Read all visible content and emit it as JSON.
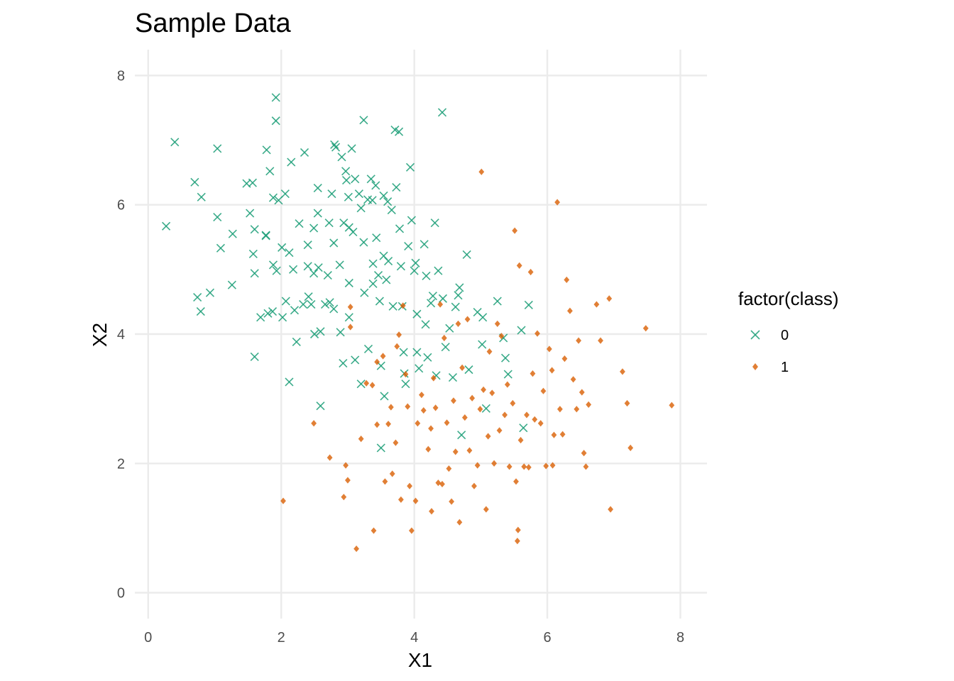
{
  "chart_data": {
    "type": "scatter",
    "title": "Sample Data",
    "xlabel": "X1",
    "ylabel": "X2",
    "xlim": [
      -0.2,
      8.4
    ],
    "ylim": [
      -0.4,
      8.4
    ],
    "x_ticks": [
      0,
      2,
      4,
      6,
      8
    ],
    "y_ticks": [
      0,
      2,
      4,
      6,
      8
    ],
    "x_tick_labels": [
      "0",
      "2",
      "4",
      "6",
      "8"
    ],
    "y_tick_labels": [
      "0",
      "2",
      "4",
      "6",
      "8"
    ],
    "grid": true,
    "legend": {
      "title": "factor(class)",
      "position": "right",
      "entries": [
        "0",
        "1"
      ]
    },
    "series": [
      {
        "name": "0",
        "marker": "x",
        "color": "#1b9e77",
        "points": [
          [
            0.4,
            6.97
          ],
          [
            0.27,
            5.67
          ],
          [
            0.7,
            6.35
          ],
          [
            0.8,
            6.12
          ],
          [
            0.74,
            4.57
          ],
          [
            0.79,
            4.35
          ],
          [
            0.93,
            4.64
          ],
          [
            1.04,
            5.81
          ],
          [
            1.04,
            6.87
          ],
          [
            1.09,
            5.33
          ],
          [
            1.27,
            5.55
          ],
          [
            1.26,
            4.76
          ],
          [
            1.48,
            6.33
          ],
          [
            1.57,
            6.34
          ],
          [
            1.53,
            5.87
          ],
          [
            1.6,
            5.62
          ],
          [
            1.58,
            5.24
          ],
          [
            1.6,
            4.94
          ],
          [
            1.6,
            3.65
          ],
          [
            1.69,
            4.26
          ],
          [
            1.77,
            5.53
          ],
          [
            1.77,
            5.52
          ],
          [
            1.78,
            6.85
          ],
          [
            1.83,
            6.52
          ],
          [
            1.8,
            4.32
          ],
          [
            1.87,
            4.35
          ],
          [
            1.88,
            5.07
          ],
          [
            1.93,
            4.98
          ],
          [
            1.92,
            7.3
          ],
          [
            1.92,
            7.66
          ],
          [
            1.88,
            6.11
          ],
          [
            1.96,
            6.07
          ],
          [
            2.01,
            5.34
          ],
          [
            2.06,
            6.17
          ],
          [
            2.02,
            4.26
          ],
          [
            2.07,
            4.51
          ],
          [
            2.12,
            3.26
          ],
          [
            2.15,
            6.66
          ],
          [
            2.12,
            5.26
          ],
          [
            2.18,
            5.0
          ],
          [
            2.2,
            4.37
          ],
          [
            2.23,
            3.88
          ],
          [
            2.27,
            5.71
          ],
          [
            2.33,
            4.46
          ],
          [
            2.35,
            6.81
          ],
          [
            2.4,
            5.38
          ],
          [
            2.4,
            5.05
          ],
          [
            2.41,
            4.58
          ],
          [
            2.45,
            4.46
          ],
          [
            2.49,
            5.64
          ],
          [
            2.49,
            4.94
          ],
          [
            2.5,
            4.0
          ],
          [
            2.55,
            6.26
          ],
          [
            2.55,
            5.87
          ],
          [
            2.56,
            5.03
          ],
          [
            2.59,
            4.04
          ],
          [
            2.59,
            2.89
          ],
          [
            2.66,
            4.46
          ],
          [
            2.7,
            4.91
          ],
          [
            2.72,
            5.72
          ],
          [
            2.73,
            4.49
          ],
          [
            2.76,
            6.17
          ],
          [
            2.79,
            5.41
          ],
          [
            2.79,
            4.39
          ],
          [
            2.8,
            6.93
          ],
          [
            2.82,
            6.89
          ],
          [
            2.88,
            5.07
          ],
          [
            2.89,
            4.03
          ],
          [
            2.91,
            6.74
          ],
          [
            2.93,
            3.55
          ],
          [
            2.94,
            5.72
          ],
          [
            2.97,
            6.52
          ],
          [
            2.98,
            6.38
          ],
          [
            3.01,
            6.12
          ],
          [
            3.02,
            5.65
          ],
          [
            3.02,
            4.79
          ],
          [
            3.02,
            4.26
          ],
          [
            3.06,
            6.87
          ],
          [
            3.08,
            5.58
          ],
          [
            3.11,
            6.4
          ],
          [
            3.11,
            3.6
          ],
          [
            3.17,
            6.17
          ],
          [
            3.2,
            5.95
          ],
          [
            3.2,
            3.23
          ],
          [
            3.24,
            7.31
          ],
          [
            3.24,
            5.42
          ],
          [
            3.25,
            4.64
          ],
          [
            3.3,
            6.08
          ],
          [
            3.31,
            3.77
          ],
          [
            3.35,
            6.4
          ],
          [
            3.37,
            6.07
          ],
          [
            3.38,
            5.09
          ],
          [
            3.38,
            4.78
          ],
          [
            3.42,
            6.3
          ],
          [
            3.43,
            5.49
          ],
          [
            3.46,
            4.91
          ],
          [
            3.48,
            4.51
          ],
          [
            3.5,
            3.51
          ],
          [
            3.5,
            2.24
          ],
          [
            3.54,
            6.14
          ],
          [
            3.54,
            5.21
          ],
          [
            3.55,
            3.04
          ],
          [
            3.58,
            4.84
          ],
          [
            3.6,
            6.05
          ],
          [
            3.61,
            5.13
          ],
          [
            3.66,
            5.92
          ],
          [
            3.68,
            4.43
          ],
          [
            3.71,
            7.16
          ],
          [
            3.73,
            6.27
          ],
          [
            3.77,
            7.13
          ],
          [
            3.78,
            5.63
          ],
          [
            3.8,
            5.05
          ],
          [
            3.82,
            4.43
          ],
          [
            3.84,
            3.72
          ],
          [
            3.85,
            3.39
          ],
          [
            3.87,
            3.23
          ],
          [
            3.91,
            5.36
          ],
          [
            3.94,
            6.58
          ],
          [
            3.96,
            5.76
          ],
          [
            4.0,
            4.98
          ],
          [
            4.02,
            5.1
          ],
          [
            4.04,
            4.31
          ],
          [
            4.04,
            3.72
          ],
          [
            4.07,
            3.47
          ],
          [
            4.15,
            5.39
          ],
          [
            4.17,
            4.15
          ],
          [
            4.18,
            4.9
          ],
          [
            4.2,
            3.64
          ],
          [
            4.25,
            4.48
          ],
          [
            4.28,
            4.59
          ],
          [
            4.31,
            5.72
          ],
          [
            4.33,
            3.36
          ],
          [
            4.36,
            4.98
          ],
          [
            4.42,
            7.43
          ],
          [
            4.43,
            4.55
          ],
          [
            4.47,
            3.8
          ],
          [
            4.53,
            4.09
          ],
          [
            4.58,
            3.33
          ],
          [
            4.62,
            4.42
          ],
          [
            4.66,
            4.6
          ],
          [
            4.68,
            4.72
          ],
          [
            4.71,
            2.44
          ],
          [
            4.79,
            5.23
          ],
          [
            4.82,
            3.45
          ],
          [
            4.95,
            4.34
          ],
          [
            5.03,
            4.26
          ],
          [
            5.02,
            3.84
          ],
          [
            5.08,
            2.85
          ],
          [
            5.25,
            4.51
          ],
          [
            5.34,
            3.94
          ],
          [
            5.37,
            3.63
          ],
          [
            5.41,
            3.38
          ],
          [
            5.64,
            2.55
          ],
          [
            5.72,
            4.45
          ],
          [
            5.61,
            4.06
          ]
        ]
      },
      {
        "name": "1",
        "marker": "diamond",
        "color": "#d95f02",
        "points": [
          [
            2.03,
            1.42
          ],
          [
            2.49,
            2.62
          ],
          [
            2.73,
            2.09
          ],
          [
            2.97,
            1.97
          ],
          [
            2.94,
            1.48
          ],
          [
            3.0,
            1.74
          ],
          [
            3.04,
            4.42
          ],
          [
            3.04,
            4.11
          ],
          [
            3.13,
            0.68
          ],
          [
            3.2,
            2.38
          ],
          [
            3.28,
            3.24
          ],
          [
            3.37,
            3.21
          ],
          [
            3.39,
            0.96
          ],
          [
            3.44,
            3.57
          ],
          [
            3.44,
            2.6
          ],
          [
            3.53,
            3.66
          ],
          [
            3.56,
            1.72
          ],
          [
            3.61,
            2.61
          ],
          [
            3.65,
            2.87
          ],
          [
            3.67,
            1.84
          ],
          [
            3.72,
            2.32
          ],
          [
            3.74,
            3.81
          ],
          [
            3.77,
            3.99
          ],
          [
            3.8,
            1.44
          ],
          [
            3.83,
            4.44
          ],
          [
            3.87,
            3.38
          ],
          [
            3.9,
            2.88
          ],
          [
            3.93,
            1.65
          ],
          [
            3.96,
            0.96
          ],
          [
            4.05,
            2.62
          ],
          [
            4.02,
            1.42
          ],
          [
            4.11,
            3.06
          ],
          [
            4.14,
            2.82
          ],
          [
            4.21,
            2.22
          ],
          [
            4.25,
            2.54
          ],
          [
            4.26,
            1.26
          ],
          [
            4.29,
            3.32
          ],
          [
            4.32,
            2.86
          ],
          [
            4.36,
            1.7
          ],
          [
            4.39,
            4.46
          ],
          [
            4.42,
            1.68
          ],
          [
            4.45,
            3.94
          ],
          [
            4.49,
            2.63
          ],
          [
            4.52,
            1.92
          ],
          [
            4.56,
            1.41
          ],
          [
            4.59,
            2.97
          ],
          [
            4.62,
            2.18
          ],
          [
            4.66,
            4.16
          ],
          [
            4.68,
            1.09
          ],
          [
            4.72,
            3.48
          ],
          [
            4.76,
            2.71
          ],
          [
            4.8,
            4.23
          ],
          [
            4.83,
            2.2
          ],
          [
            4.87,
            3.01
          ],
          [
            4.9,
            1.65
          ],
          [
            4.95,
            1.97
          ],
          [
            4.99,
            2.84
          ],
          [
            5.01,
            6.51
          ],
          [
            5.04,
            3.14
          ],
          [
            5.08,
            1.29
          ],
          [
            5.11,
            2.42
          ],
          [
            5.13,
            3.73
          ],
          [
            5.17,
            3.09
          ],
          [
            5.2,
            2.0
          ],
          [
            5.25,
            4.16
          ],
          [
            5.28,
            2.51
          ],
          [
            5.31,
            3.97
          ],
          [
            5.36,
            2.75
          ],
          [
            5.4,
            3.22
          ],
          [
            5.43,
            1.95
          ],
          [
            5.48,
            2.93
          ],
          [
            5.51,
            5.6
          ],
          [
            5.53,
            1.72
          ],
          [
            5.55,
            0.8
          ],
          [
            5.56,
            0.97
          ],
          [
            5.58,
            5.06
          ],
          [
            5.6,
            2.36
          ],
          [
            5.65,
            1.95
          ],
          [
            5.69,
            2.75
          ],
          [
            5.72,
            1.94
          ],
          [
            5.75,
            4.96
          ],
          [
            5.78,
            3.39
          ],
          [
            5.81,
            2.68
          ],
          [
            5.85,
            4.01
          ],
          [
            5.9,
            2.62
          ],
          [
            5.94,
            3.12
          ],
          [
            5.98,
            1.96
          ],
          [
            6.03,
            3.77
          ],
          [
            6.07,
            3.44
          ],
          [
            6.08,
            1.97
          ],
          [
            6.1,
            2.44
          ],
          [
            6.15,
            6.04
          ],
          [
            6.19,
            2.84
          ],
          [
            6.23,
            2.45
          ],
          [
            6.26,
            3.62
          ],
          [
            6.29,
            4.84
          ],
          [
            6.34,
            4.36
          ],
          [
            6.39,
            3.3
          ],
          [
            6.44,
            2.84
          ],
          [
            6.47,
            3.9
          ],
          [
            6.52,
            3.1
          ],
          [
            6.55,
            2.16
          ],
          [
            6.58,
            1.95
          ],
          [
            6.62,
            2.91
          ],
          [
            6.74,
            4.46
          ],
          [
            6.8,
            3.9
          ],
          [
            6.93,
            4.55
          ],
          [
            6.95,
            1.29
          ],
          [
            7.13,
            3.42
          ],
          [
            7.2,
            2.93
          ],
          [
            7.25,
            2.24
          ],
          [
            7.48,
            4.09
          ],
          [
            7.87,
            2.9
          ]
        ]
      }
    ]
  }
}
